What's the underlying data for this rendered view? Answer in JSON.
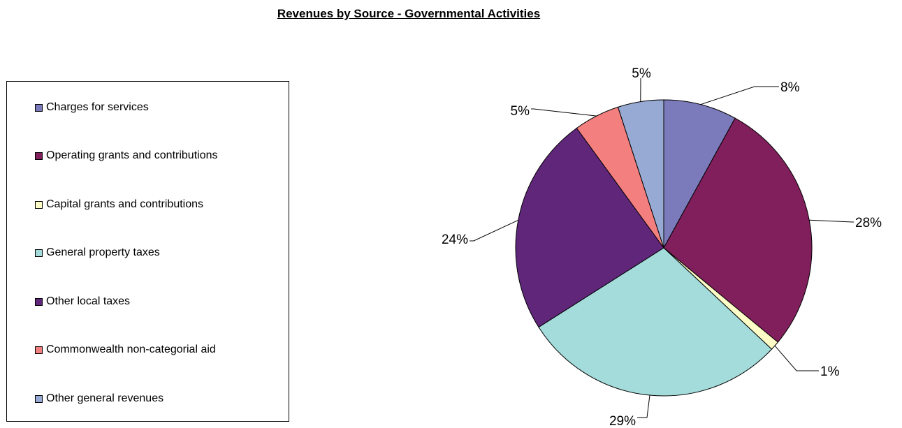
{
  "chart_data": {
    "type": "pie",
    "title": "Revenues by Source - Governmental Activities",
    "legend_position": "left",
    "slices": [
      {
        "name": "Charges for services",
        "value": 8,
        "label": "8%",
        "color": "#7b7bbb"
      },
      {
        "name": "Operating grants and contributions",
        "value": 28,
        "label": "28%",
        "color": "#801f5c"
      },
      {
        "name": "Capital grants and contributions",
        "value": 1,
        "label": "1%",
        "color": "#fdfcc6"
      },
      {
        "name": "General property taxes",
        "value": 29,
        "label": "29%",
        "color": "#a4dbdb"
      },
      {
        "name": "Other local taxes",
        "value": 24,
        "label": "24%",
        "color": "#5f267a"
      },
      {
        "name": "Commonwealth non-categorial aid",
        "value": 5,
        "label": "5%",
        "color": "#f47f7f"
      },
      {
        "name": "Other general revenues",
        "value": 5,
        "label": "5%",
        "color": "#96aad3"
      }
    ]
  }
}
